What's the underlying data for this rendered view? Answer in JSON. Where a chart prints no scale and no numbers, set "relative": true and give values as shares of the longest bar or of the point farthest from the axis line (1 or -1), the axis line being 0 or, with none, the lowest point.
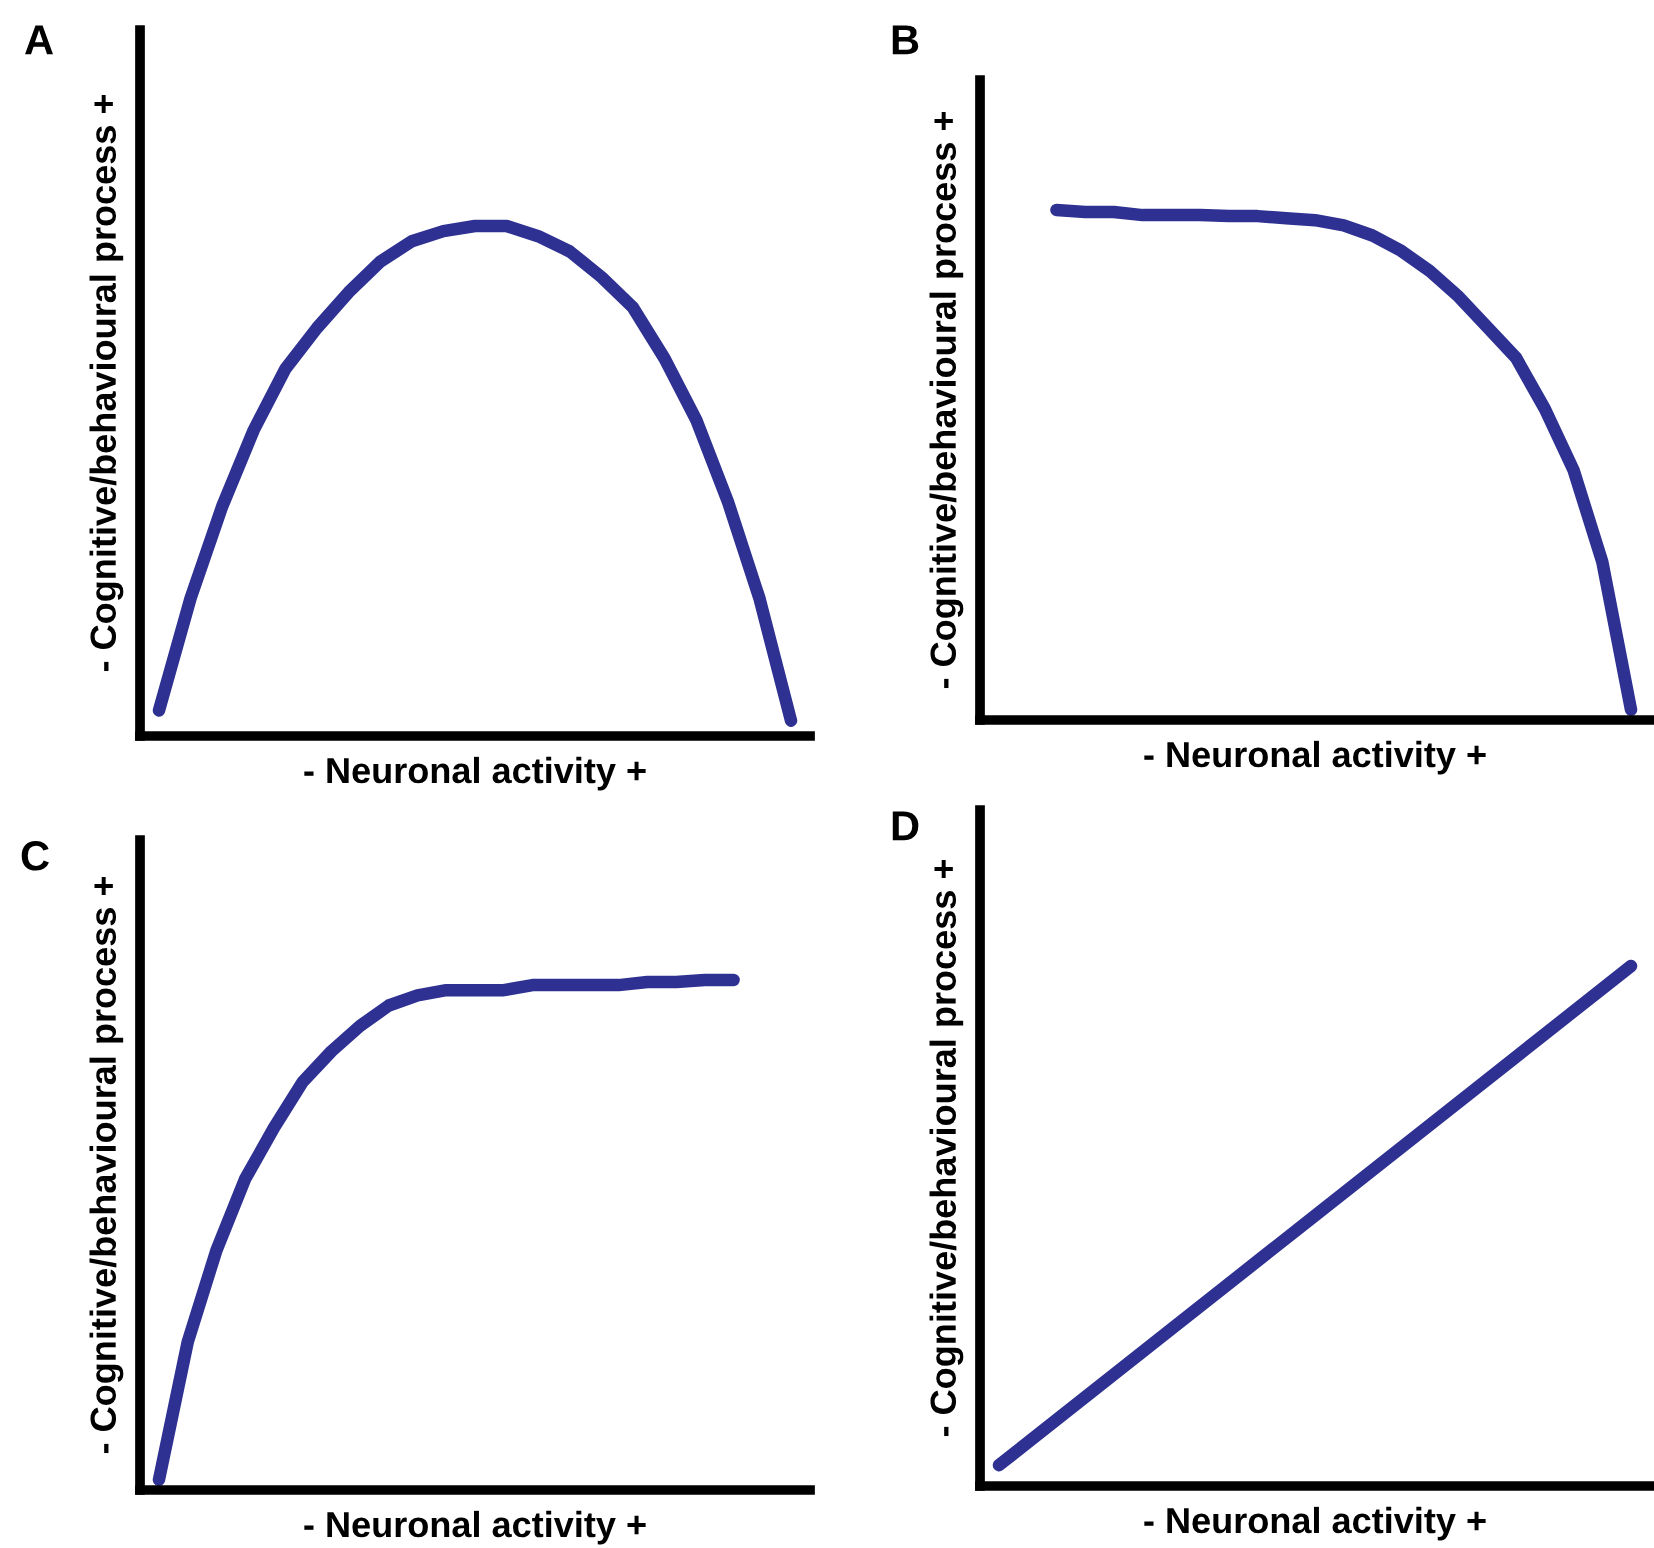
{
  "chart_data": [
    {
      "type": "line",
      "title": "A",
      "xlabel": "- Neuronal activity +",
      "ylabel": "- Cognitive/behavioural process +",
      "relative": true,
      "marker": "none",
      "line_style": "solid",
      "grid": false,
      "legend": false,
      "categories": [
        null,
        null,
        null,
        null,
        null,
        null,
        null,
        null,
        null,
        null,
        null,
        null,
        null,
        null,
        null,
        null,
        null,
        null,
        null,
        null,
        null
      ],
      "series": [
        {
          "color": "#2e3192",
          "values": [
            0.05,
            0.27,
            0.45,
            0.6,
            0.72,
            0.8,
            0.87,
            0.93,
            0.97,
            0.99,
            1.0,
            1.0,
            0.98,
            0.95,
            0.9,
            0.84,
            0.74,
            0.62,
            0.46,
            0.27,
            0.03
          ]
        }
      ]
    },
    {
      "type": "line",
      "title": "B",
      "xlabel": "- Neuronal activity +",
      "ylabel": "- Cognitive/behavioural process +",
      "relative": true,
      "marker": "none",
      "line_style": "solid",
      "grid": false,
      "legend": false,
      "categories": [
        null,
        null,
        null,
        null,
        null,
        null,
        null,
        null,
        null,
        null,
        null,
        null,
        null,
        null,
        null,
        null,
        null,
        null,
        null,
        null,
        null,
        null,
        null
      ],
      "series": [
        {
          "color": "#2e3192",
          "values": [
            null,
            null,
            1.0,
            0.996,
            0.996,
            0.99,
            0.99,
            0.99,
            0.988,
            0.988,
            0.984,
            0.98,
            0.97,
            0.95,
            0.92,
            0.88,
            0.83,
            0.77,
            0.71,
            0.61,
            0.49,
            0.31,
            0.02
          ]
        }
      ]
    },
    {
      "type": "line",
      "title": "C",
      "xlabel": "- Neuronal activity +",
      "ylabel": "- Cognitive/behavioural process +",
      "relative": true,
      "marker": "none",
      "line_style": "solid",
      "grid": false,
      "legend": false,
      "categories": [
        null,
        null,
        null,
        null,
        null,
        null,
        null,
        null,
        null,
        null,
        null,
        null,
        null,
        null,
        null,
        null,
        null,
        null,
        null,
        null,
        null,
        null,
        null
      ],
      "series": [
        {
          "color": "#2e3192",
          "values": [
            0.02,
            0.29,
            0.47,
            0.61,
            0.71,
            0.8,
            0.86,
            0.91,
            0.95,
            0.97,
            0.98,
            0.98,
            0.98,
            0.99,
            0.99,
            0.99,
            0.99,
            0.996,
            0.996,
            1.0,
            1.0,
            null,
            null
          ]
        }
      ]
    },
    {
      "type": "line",
      "title": "D",
      "xlabel": "- Neuronal activity +",
      "ylabel": "- Cognitive/behavioural process +",
      "relative": true,
      "marker": "none",
      "line_style": "solid",
      "grid": false,
      "legend": false,
      "categories": [
        null,
        null,
        null,
        null,
        null
      ],
      "series": [
        {
          "color": "#2e3192",
          "values": [
            0.04,
            0.28,
            0.52,
            0.76,
            1.0
          ]
        }
      ]
    }
  ]
}
